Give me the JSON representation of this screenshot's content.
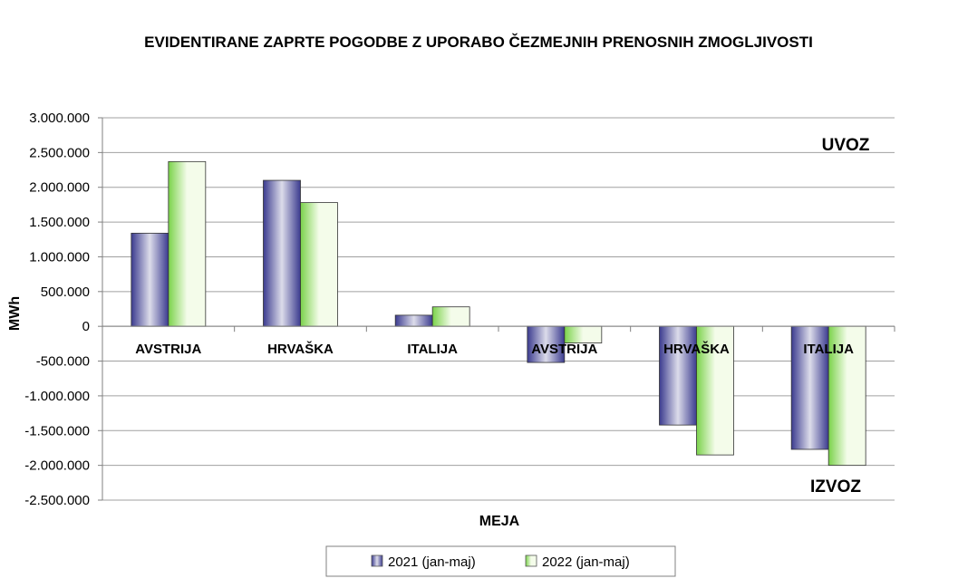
{
  "chart_data": {
    "type": "bar",
    "title": "EVIDENTIRANE ZAPRTE POGODBE Z UPORABO ČEZMEJNIH PRENOSNIH ZMOGLJIVOSTI",
    "xlabel": "MEJA",
    "ylabel": "MWh",
    "categories": [
      "AVSTRIJA",
      "HRVAŠKA",
      "ITALIJA",
      "AVSTRIJA",
      "HRVAŠKA",
      "ITALIJA"
    ],
    "series": [
      {
        "name": "2021 (jan-maj)",
        "values": [
          1340000,
          2100000,
          160000,
          -520000,
          -1420000,
          -1770000
        ]
      },
      {
        "name": "2022 (jan-maj)",
        "values": [
          2370000,
          1780000,
          280000,
          -240000,
          -1850000,
          -2000000
        ]
      }
    ],
    "ylim": [
      -2500000,
      3000000
    ],
    "yticks": [
      3000000,
      2500000,
      2000000,
      1500000,
      1000000,
      500000,
      0,
      -500000,
      -1000000,
      -1500000,
      -2000000,
      -2500000
    ],
    "ytick_labels": [
      "3.000.000",
      "2.500.000",
      "2.000.000",
      "1.500.000",
      "1.000.000",
      "500.000",
      "0",
      "-500.000",
      "-1.000.000",
      "-1.500.000",
      "-2.000.000",
      "-2.500.000"
    ],
    "annotations": {
      "top": "UVOZ",
      "bottom": "IZVOZ"
    },
    "grid": true,
    "legend_position": "bottom",
    "colors": {
      "series1_dark": "#3b3b8f",
      "series1_light": "#dcdcea",
      "series2_dark": "#7ad24a",
      "series2_light": "#f4fcea",
      "grid": "#a0a0a0",
      "axis": "#808080"
    }
  }
}
